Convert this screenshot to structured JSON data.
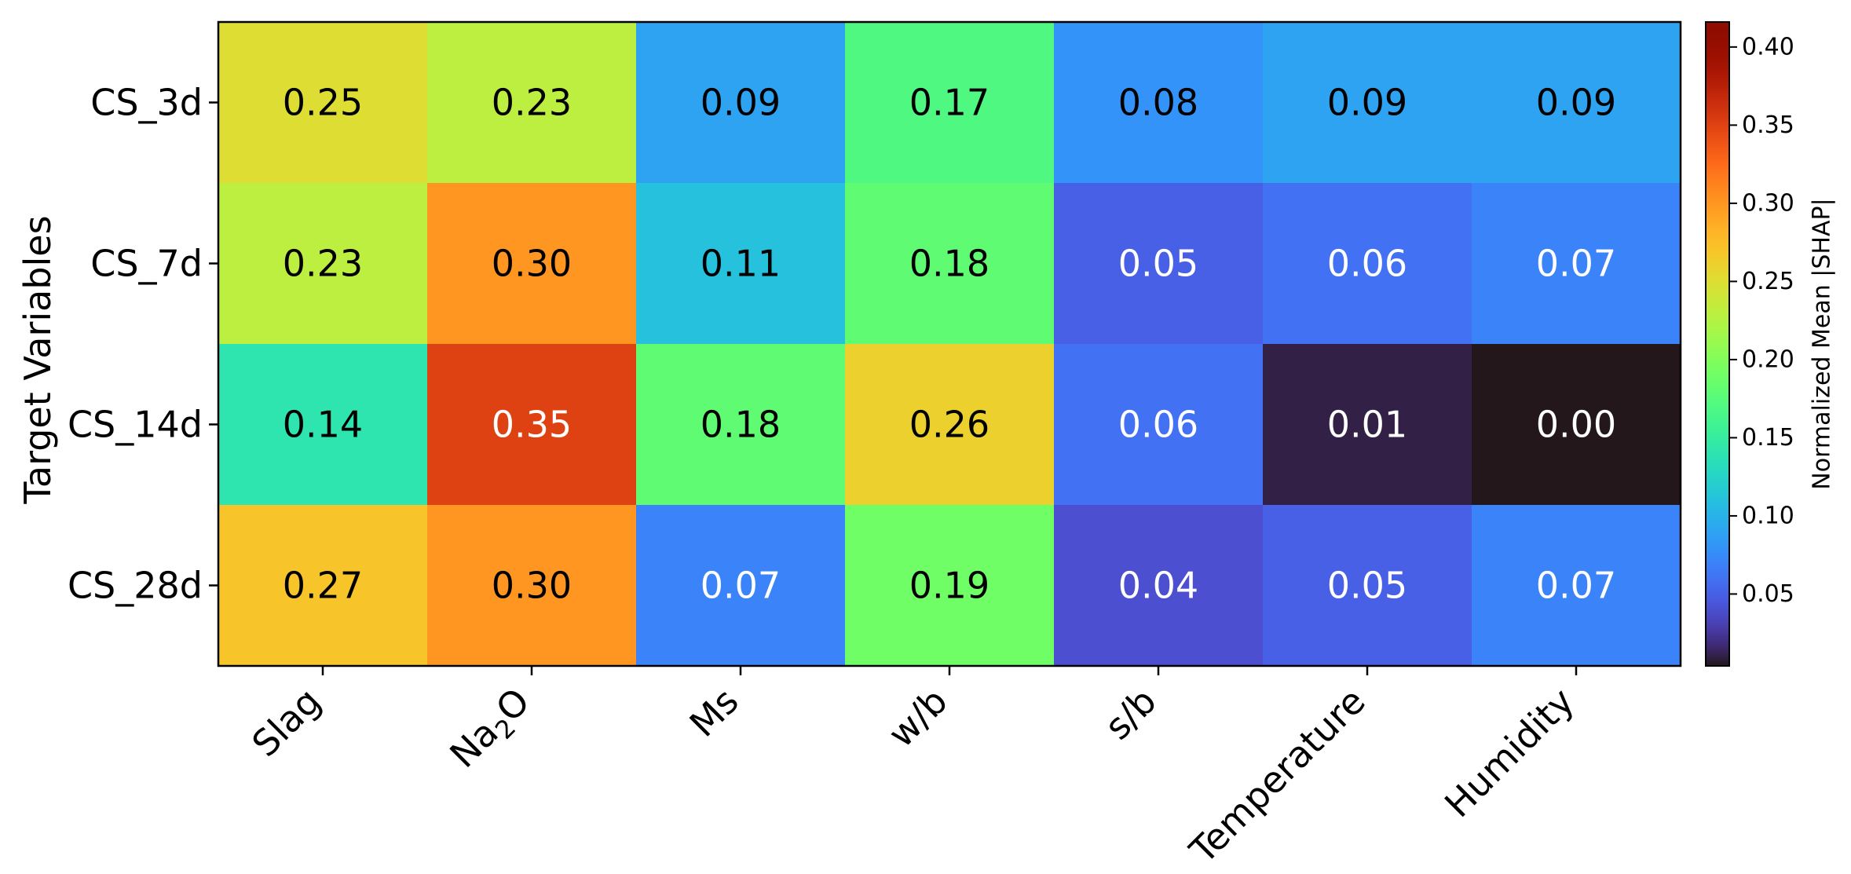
{
  "chart_data": {
    "type": "heatmap",
    "title": "",
    "xlabel": "",
    "ylabel": "Target Variables",
    "x_categories": [
      "Slag",
      "Na2O",
      "Ms",
      "w/b",
      "s/b",
      "Temperature",
      "Humidity"
    ],
    "y_categories": [
      "CS_3d",
      "CS_7d",
      "CS_14d",
      "CS_28d"
    ],
    "values": [
      [
        0.25,
        0.23,
        0.09,
        0.17,
        0.08,
        0.09,
        0.09
      ],
      [
        0.23,
        0.3,
        0.11,
        0.18,
        0.05,
        0.06,
        0.07
      ],
      [
        0.14,
        0.35,
        0.18,
        0.26,
        0.06,
        0.01,
        0.0
      ],
      [
        0.27,
        0.3,
        0.07,
        0.19,
        0.04,
        0.05,
        0.07
      ]
    ],
    "value_format": "0.00",
    "colormap": "turbo",
    "colorbar": {
      "label": "Normalized Mean |SHAP|",
      "range": [
        0.004,
        0.416
      ],
      "ticks": [
        0.05,
        0.1,
        0.15,
        0.2,
        0.25,
        0.3,
        0.35,
        0.4
      ],
      "tick_labels": [
        "0.05",
        "0.10",
        "0.15",
        "0.20",
        "0.25",
        "0.30",
        "0.35",
        "0.40"
      ],
      "placement": "right"
    },
    "grid": false
  }
}
